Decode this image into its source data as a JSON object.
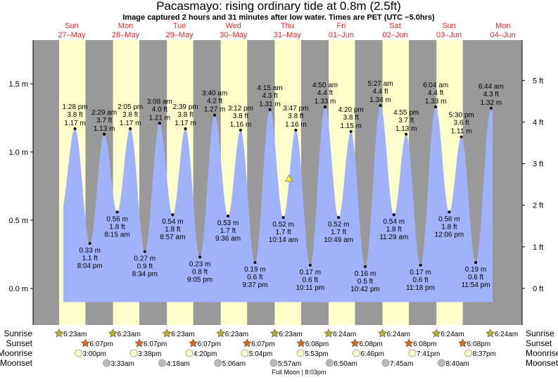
{
  "chart_data": {
    "type": "area",
    "title": "Pacasmayo: rising  ordinary tide at 0.8m (2.5ft)",
    "subtitle": "Image captured 2 hours and 31 minutes after low water. Times are PET (UTC −5.0hrs)",
    "days": [
      {
        "dow": "Sun",
        "date": "27–May"
      },
      {
        "dow": "Mon",
        "date": "28–May"
      },
      {
        "dow": "Tue",
        "date": "29–May"
      },
      {
        "dow": "Wed",
        "date": "30–May"
      },
      {
        "dow": "Thu",
        "date": "31–May"
      },
      {
        "dow": "Fri",
        "date": "01–Jun"
      },
      {
        "dow": "Sat",
        "date": "02–Jun"
      },
      {
        "dow": "Sun",
        "date": "03–Jun"
      },
      {
        "dow": "Mon",
        "date": "04–Jun"
      }
    ],
    "y_left": {
      "unit": "m",
      "ticks": [
        "0.0 m",
        "0.5 m",
        "1.0 m",
        "1.5 m"
      ],
      "tick_values": [
        0,
        0.5,
        1.0,
        1.5
      ],
      "range": [
        -0.1,
        1.75
      ]
    },
    "y_right": {
      "unit": "ft",
      "ticks": [
        "0 ft",
        "1 ft",
        "2 ft",
        "3 ft",
        "4 ft",
        "5 ft"
      ],
      "tick_values": [
        0,
        1,
        2,
        3,
        4,
        5
      ]
    },
    "time_range": {
      "start": {
        "day": 0,
        "time": "8:17 am"
      },
      "end": {
        "day": 8,
        "time": "7:26 am"
      }
    },
    "current": {
      "day": 4,
      "time": "12:45 pm",
      "m": 0.8,
      "ft": 2.5
    },
    "extremes": [
      {
        "day": 0,
        "type": "high",
        "time": "1:28 pm",
        "ft": "3.8 ft",
        "m": "1.17 m",
        "value": 1.17
      },
      {
        "day": 0,
        "type": "low",
        "time": "8:04 pm",
        "ft": "1.1 ft",
        "m": "0.33 m",
        "value": 0.33
      },
      {
        "day": 1,
        "type": "high",
        "time": "2:29 am",
        "ft": "3.7 ft",
        "m": "1.13 m",
        "value": 1.13
      },
      {
        "day": 1,
        "type": "low",
        "time": "8:15 am",
        "ft": "1.8 ft",
        "m": "0.56 m",
        "value": 0.56
      },
      {
        "day": 1,
        "type": "high",
        "time": "2:05 pm",
        "ft": "3.8 ft",
        "m": "1.17 m",
        "value": 1.17
      },
      {
        "day": 1,
        "type": "low",
        "time": "8:34 pm",
        "ft": "0.9 ft",
        "m": "0.27 m",
        "value": 0.27
      },
      {
        "day": 2,
        "type": "high",
        "time": "3:08 am",
        "ft": "4.0 ft",
        "m": "1.21 m",
        "value": 1.21
      },
      {
        "day": 2,
        "type": "low",
        "time": "8:57 am",
        "ft": "1.8 ft",
        "m": "0.54 m",
        "value": 0.54
      },
      {
        "day": 2,
        "type": "high",
        "time": "2:39 pm",
        "ft": "3.8 ft",
        "m": "1.17 m",
        "value": 1.17
      },
      {
        "day": 2,
        "type": "low",
        "time": "9:05 pm",
        "ft": "0.8 ft",
        "m": "0.23 m",
        "value": 0.23
      },
      {
        "day": 3,
        "type": "high",
        "time": "3:40 am",
        "ft": "4.2 ft",
        "m": "1.27 m",
        "value": 1.27
      },
      {
        "day": 3,
        "type": "low",
        "time": "9:36 am",
        "ft": "1.7 ft",
        "m": "0.53 m",
        "value": 0.53
      },
      {
        "day": 3,
        "type": "high",
        "time": "3:12 pm",
        "ft": "3.8 ft",
        "m": "1.16 m",
        "value": 1.16
      },
      {
        "day": 3,
        "type": "low",
        "time": "9:37 pm",
        "ft": "0.6 ft",
        "m": "0.19 m",
        "value": 0.19
      },
      {
        "day": 4,
        "type": "high",
        "time": "4:15 am",
        "ft": "4.3 ft",
        "m": "1.31 m",
        "value": 1.31
      },
      {
        "day": 4,
        "type": "low",
        "time": "10:14 am",
        "ft": "1.7 ft",
        "m": "0.52 m",
        "value": 0.52
      },
      {
        "day": 4,
        "type": "high",
        "time": "3:47 pm",
        "ft": "3.8 ft",
        "m": "1.16 m",
        "value": 1.16
      },
      {
        "day": 4,
        "type": "low",
        "time": "10:11 pm",
        "ft": "0.6 ft",
        "m": "0.17 m",
        "value": 0.17
      },
      {
        "day": 5,
        "type": "high",
        "time": "4:50 am",
        "ft": "4.4 ft",
        "m": "1.33 m",
        "value": 1.33
      },
      {
        "day": 5,
        "type": "low",
        "time": "10:49 am",
        "ft": "1.7 ft",
        "m": "0.52 m",
        "value": 0.52
      },
      {
        "day": 5,
        "type": "high",
        "time": "4:20 pm",
        "ft": "3.8 ft",
        "m": "1.15 m",
        "value": 1.15
      },
      {
        "day": 5,
        "type": "low",
        "time": "10:42 pm",
        "ft": "0.5 ft",
        "m": "0.16 m",
        "value": 0.16
      },
      {
        "day": 6,
        "type": "high",
        "time": "5:27 am",
        "ft": "4.4 ft",
        "m": "1.34 m",
        "value": 1.34
      },
      {
        "day": 6,
        "type": "low",
        "time": "11:29 am",
        "ft": "1.8 ft",
        "m": "0.54 m",
        "value": 0.54
      },
      {
        "day": 6,
        "type": "high",
        "time": "4:55 pm",
        "ft": "3.7 ft",
        "m": "1.13 m",
        "value": 1.13
      },
      {
        "day": 6,
        "type": "low",
        "time": "11:18 pm",
        "ft": "0.6 ft",
        "m": "0.17 m",
        "value": 0.17
      },
      {
        "day": 7,
        "type": "high",
        "time": "6:04 am",
        "ft": "4.4 ft",
        "m": "1.33 m",
        "value": 1.33
      },
      {
        "day": 7,
        "type": "low",
        "time": "12:06 pm",
        "ft": "1.8 ft",
        "m": "0.56 m",
        "value": 0.56
      },
      {
        "day": 7,
        "type": "high",
        "time": "5:30 pm",
        "ft": "3.6 ft",
        "m": "1.11 m",
        "value": 1.11
      },
      {
        "day": 7,
        "type": "low",
        "time": "11:54 pm",
        "ft": "0.6 ft",
        "m": "0.19 m",
        "value": 0.19
      },
      {
        "day": 8,
        "type": "high",
        "time": "6:44 am",
        "ft": "4.3 ft",
        "m": "1.32 m",
        "value": 1.32
      }
    ],
    "rows": {
      "sunrise": {
        "label": "Sunrise",
        "events": [
          {
            "day": 0,
            "time": "6:23am"
          },
          {
            "day": 1,
            "time": "6:23am"
          },
          {
            "day": 2,
            "time": "6:23am"
          },
          {
            "day": 3,
            "time": "6:23am"
          },
          {
            "day": 4,
            "time": "6:23am"
          },
          {
            "day": 5,
            "time": "6:24am"
          },
          {
            "day": 6,
            "time": "6:24am"
          },
          {
            "day": 7,
            "time": "6:24am"
          },
          {
            "day": 8,
            "time": "6:24am"
          }
        ]
      },
      "sunset": {
        "label": "Sunset",
        "events": [
          {
            "day": 0,
            "time": "6:07pm"
          },
          {
            "day": 1,
            "time": "6:07pm"
          },
          {
            "day": 2,
            "time": "6:07pm"
          },
          {
            "day": 3,
            "time": "6:07pm"
          },
          {
            "day": 4,
            "time": "6:08pm"
          },
          {
            "day": 5,
            "time": "6:08pm"
          },
          {
            "day": 6,
            "time": "6:08pm"
          },
          {
            "day": 7,
            "time": "6:08pm"
          }
        ]
      },
      "moonrise": {
        "label": "Moonrise",
        "events": [
          {
            "day": 0,
            "time": "3:00pm"
          },
          {
            "day": 1,
            "time": "3:38pm"
          },
          {
            "day": 2,
            "time": "4:20pm"
          },
          {
            "day": 3,
            "time": "5:04pm"
          },
          {
            "day": 4,
            "time": "5:53pm"
          },
          {
            "day": 5,
            "time": "6:46pm"
          },
          {
            "day": 6,
            "time": "7:41pm"
          },
          {
            "day": 7,
            "time": "8:37pm"
          }
        ]
      },
      "moonset": {
        "label": "Moonset",
        "events": [
          {
            "day": 1,
            "time": "3:33am"
          },
          {
            "day": 2,
            "time": "4:18am"
          },
          {
            "day": 3,
            "time": "5:06am"
          },
          {
            "day": 4,
            "time": "5:57am"
          },
          {
            "day": 5,
            "time": "6:50am"
          },
          {
            "day": 6,
            "time": "7:45am"
          },
          {
            "day": 7,
            "time": "8:40am"
          }
        ]
      }
    },
    "moon_phase": {
      "day": 4,
      "time": "8:03pm",
      "label": "Full Moon | 8:03pm"
    },
    "colors": {
      "night": "#999999",
      "day": "#ffffcc",
      "water": "#a0b2fc",
      "day_label": "#e8262a",
      "sunrise": "#b3b033",
      "sunset": "#d2692c",
      "moonrise": "#ffffcc",
      "moonset": "#bdbab5",
      "current_marker": "#ffff00"
    }
  }
}
